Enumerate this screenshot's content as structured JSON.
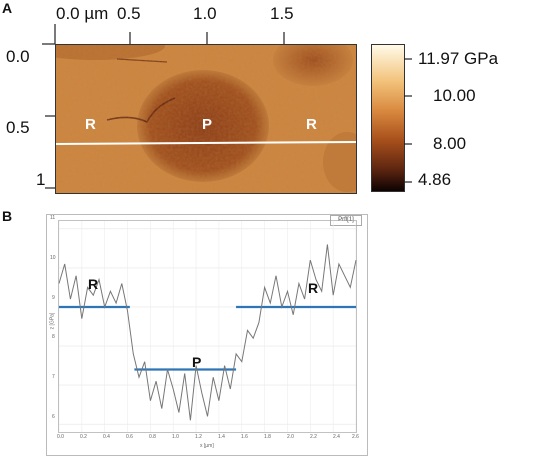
{
  "panel_a": {
    "label": "A",
    "x_ticks": [
      "0.0 µm",
      "0.5",
      "1.0",
      "1.5"
    ],
    "y_ticks": [
      "0.0",
      "0.5",
      "1"
    ],
    "region_labels": {
      "left": "R",
      "middle": "P",
      "right": "R"
    },
    "colorbar": {
      "ticks": [
        "11.97 GPa",
        "10.00",
        "8.00",
        "4.86"
      ],
      "colors": [
        "#fffbe8",
        "#f2c27a",
        "#d9893f",
        "#a8501c",
        "#5e2610",
        "#0d0302"
      ]
    },
    "colors": {
      "map_base": "#c8813d",
      "particle": "#9a4a1e",
      "line": "#ffffff"
    }
  },
  "panel_b": {
    "label": "B",
    "legend": "Prfl[1]",
    "y_ticks": [
      "11",
      "10",
      "9",
      "8",
      "7",
      "6"
    ],
    "x_ticks": [
      "0.0",
      "0.2",
      "0.4",
      "0.6",
      "0.8",
      "1.0",
      "1.2",
      "1.4",
      "1.6",
      "1.8",
      "2.0",
      "2.2",
      "2.4",
      "2.6"
    ],
    "xlabel": "x [µm]",
    "ylabel": "z [GPa]",
    "region_labels": {
      "left": "R",
      "middle": "P",
      "right": "R"
    },
    "colors": {
      "profile": "#777777",
      "level_line": "#2e75b6"
    }
  },
  "chart_data": {
    "type": "line",
    "series": [
      {
        "values_note_free": true,
        "x": [
          0.0,
          0.05,
          0.1,
          0.15,
          0.2,
          0.25,
          0.3,
          0.35,
          0.4,
          0.45,
          0.5,
          0.55,
          0.6,
          0.65,
          0.7,
          0.75,
          0.8,
          0.85,
          0.9,
          0.95,
          1.0,
          1.05,
          1.1,
          1.15,
          1.2,
          1.25,
          1.3,
          1.35,
          1.4,
          1.45,
          1.5,
          1.55,
          1.6,
          1.65,
          1.7,
          1.75,
          1.8,
          1.85,
          1.9,
          1.95,
          2.0,
          2.05,
          2.1,
          2.15,
          2.2,
          2.25,
          2.3,
          2.35,
          2.4,
          2.45,
          2.5,
          2.55,
          2.6
        ],
        "y": [
          9.6,
          10.1,
          9.2,
          9.8,
          8.7,
          9.5,
          9.3,
          9.7,
          9.0,
          9.4,
          9.1,
          9.6,
          8.9,
          7.8,
          7.2,
          7.6,
          6.6,
          7.1,
          6.4,
          7.4,
          6.9,
          6.3,
          7.3,
          6.1,
          7.5,
          6.8,
          6.2,
          7.2,
          6.6,
          7.5,
          6.9,
          7.8,
          7.6,
          8.4,
          8.2,
          8.6,
          9.5,
          9.1,
          9.8,
          9.0,
          9.4,
          8.8,
          9.6,
          9.2,
          10.2,
          9.7,
          9.4,
          10.6,
          9.3,
          10.1,
          9.8,
          9.5,
          10.2
        ]
      }
    ],
    "levels": [
      {
        "label": "R",
        "y": 9.0,
        "x_range": [
          0.0,
          0.62
        ]
      },
      {
        "label": "P",
        "y": 7.4,
        "x_range": [
          0.66,
          1.55
        ]
      },
      {
        "label": "R",
        "y": 9.0,
        "x_range": [
          1.55,
          2.6
        ]
      }
    ],
    "xlim": [
      0.0,
      2.6
    ],
    "ylim": [
      5.8,
      11.2
    ],
    "xlabel": "x [µm]",
    "ylabel": "z [GPa]",
    "grid": true,
    "legend": "top-right"
  }
}
